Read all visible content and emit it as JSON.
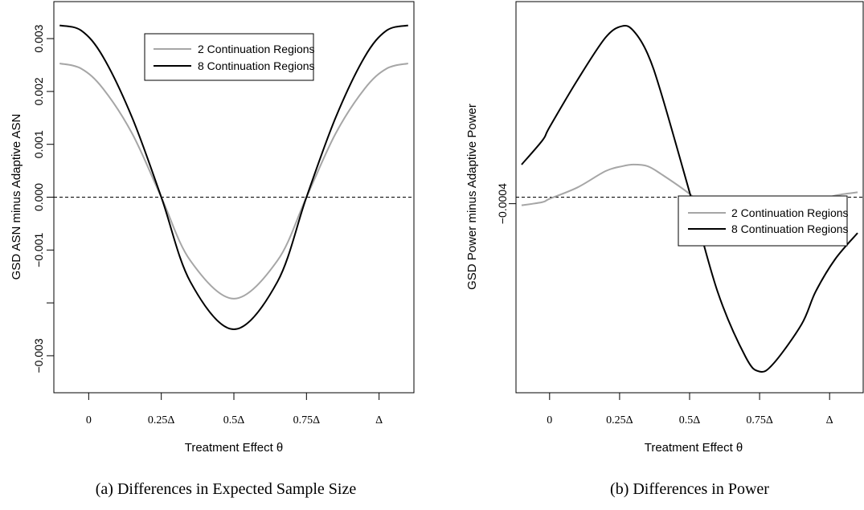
{
  "colors": {
    "series_light": "#a6a6a6",
    "series_dark": "#000000",
    "reference_line": "#000000",
    "frame": "#000000"
  },
  "chart_data": [
    {
      "type": "line",
      "caption": "(a) Differences in Expected Sample Size",
      "xlabel": "Treatment Effect θ",
      "ylabel": "GSD ASN minus Adaptive ASN",
      "x_ticks": [
        {
          "value": 0,
          "label": "0"
        },
        {
          "value": 0.25,
          "label": "0.25Δ"
        },
        {
          "value": 0.5,
          "label": "0.5Δ"
        },
        {
          "value": 0.75,
          "label": "0.75Δ"
        },
        {
          "value": 1,
          "label": "Δ"
        }
      ],
      "y_ticks": [
        {
          "value": -0.003,
          "label": "−0.003"
        },
        {
          "value": -0.002,
          "label": ""
        },
        {
          "value": -0.001,
          "label": "−0.001"
        },
        {
          "value": 0,
          "label": "0.000"
        },
        {
          "value": 0.001,
          "label": "0.001"
        },
        {
          "value": 0.002,
          "label": "0.002"
        },
        {
          "value": 0.003,
          "label": "0.003"
        }
      ],
      "xlim": [
        -0.12,
        1.12
      ],
      "ylim": [
        -0.0037,
        0.0037
      ],
      "reference_line": 0,
      "legend_position": "top-center",
      "x": [
        -0.1,
        -0.025,
        0.05,
        0.15,
        0.25,
        0.35,
        0.5,
        0.65,
        0.75,
        0.85,
        0.95,
        1.025,
        1.1
      ],
      "series": [
        {
          "name": "2 Continuation Regions",
          "color": "#a6a6a6",
          "values": [
            0.00253,
            0.00243,
            0.00205,
            0.0012,
            0.0,
            -0.0012,
            -0.00192,
            -0.0012,
            0.0,
            0.0012,
            0.00205,
            0.00243,
            0.00253
          ]
        },
        {
          "name": "8 Continuation Regions",
          "color": "#000000",
          "values": [
            0.00325,
            0.00315,
            0.00265,
            0.0015,
            0.0,
            -0.0016,
            -0.0025,
            -0.0016,
            0.0,
            0.0015,
            0.00265,
            0.00315,
            0.00325
          ]
        }
      ]
    },
    {
      "type": "line",
      "caption": "(b) Differences in Power",
      "xlabel": "Treatment Effect θ",
      "ylabel": "GSD Power minus Adaptive Power",
      "x_ticks": [
        {
          "value": 0,
          "label": "0"
        },
        {
          "value": 0.25,
          "label": "0.25Δ"
        },
        {
          "value": 0.5,
          "label": "0.5Δ"
        },
        {
          "value": 0.75,
          "label": "0.75Δ"
        },
        {
          "value": 1,
          "label": "Δ"
        }
      ],
      "y_ticks": [
        {
          "value": -0.0004,
          "label": "−0.0004"
        }
      ],
      "xlim": [
        -0.12,
        1.12
      ],
      "ylim": [
        -0.012,
        0.012
      ],
      "reference_line": 0,
      "legend_position": "center-right",
      "x": [
        -0.1,
        -0.025,
        0.0,
        0.1,
        0.2,
        0.26,
        0.3,
        0.35,
        0.4,
        0.5,
        0.6,
        0.7,
        0.75,
        0.8,
        0.9,
        0.95,
        1.02,
        1.1
      ],
      "series": [
        {
          "name": "2 Continuation Regions",
          "color": "#a6a6a6",
          "values": [
            -0.0005,
            -0.0003,
            -0.0001,
            0.0006,
            0.0016,
            0.0019,
            0.002,
            0.0019,
            0.0014,
            0.0002,
            -0.0013,
            -0.002,
            -0.002,
            -0.0017,
            -0.0008,
            -0.0003,
            0.0001,
            0.0003
          ]
        },
        {
          "name": "8 Continuation Regions",
          "color": "#000000",
          "values": [
            0.002,
            0.0035,
            0.0043,
            0.0072,
            0.0098,
            0.0105,
            0.0102,
            0.0088,
            0.0063,
            0.0003,
            -0.0058,
            -0.0098,
            -0.0107,
            -0.0102,
            -0.0078,
            -0.0058,
            -0.0038,
            -0.0022
          ]
        }
      ]
    }
  ]
}
